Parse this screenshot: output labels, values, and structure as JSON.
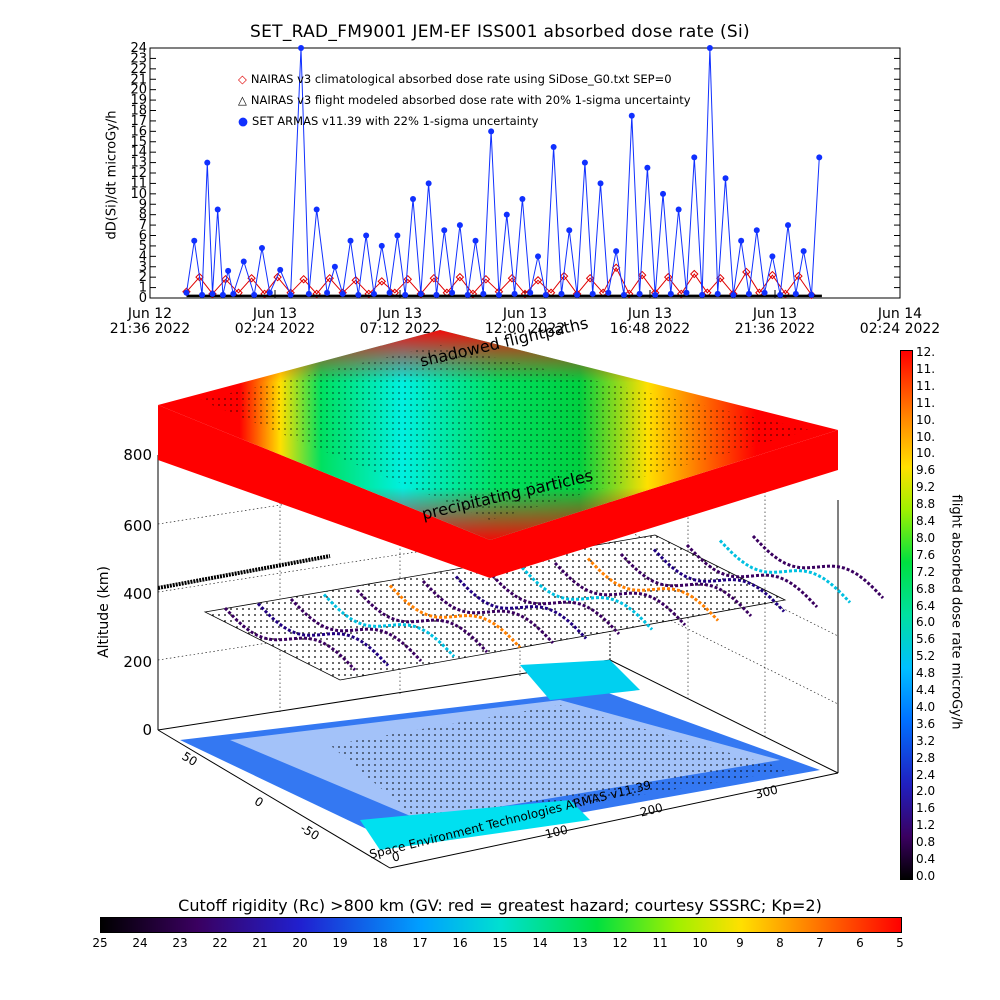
{
  "title": "SET_RAD_FM9001  JEM-EF ISS001 absorbed dose rate (Si)",
  "y_axis_label": "dD(Si)/dt microGy/h",
  "time_axis_ticks": [
    {
      "line1": "Jun 12",
      "line2": "21:36 2022"
    },
    {
      "line1": "Jun 13",
      "line2": "02:24 2022"
    },
    {
      "line1": "Jun 13",
      "line2": "07:12 2022"
    },
    {
      "line1": "Jun 13",
      "line2": "12:00 2022"
    },
    {
      "line1": "Jun 13",
      "line2": "16:48 2022"
    },
    {
      "line1": "Jun 13",
      "line2": "21:36 2022"
    },
    {
      "line1": "Jun 14",
      "line2": "02:24 2022"
    }
  ],
  "legend": [
    {
      "marker": "◇",
      "color": "#e00000",
      "label": "NAIRAS v3 climatological absorbed dose rate using SiDose_G0.txt SEP=0"
    },
    {
      "marker": "△",
      "color": "#000000",
      "label": "NAIRAS v3 flight modeled absorbed dose rate with 20% 1-sigma uncertainty"
    },
    {
      "marker": "●",
      "color": "#1030ff",
      "label": "SET ARMAS v11.39 with 22% 1-sigma uncertainty"
    }
  ],
  "annotations": {
    "shadowed": "shadowed flightpaths",
    "precipitating": "precipitating particles"
  },
  "altitude_label": "Altitude (km)",
  "altitude_ticks": [
    "0",
    "200",
    "400",
    "600",
    "800"
  ],
  "lat_ticks": [
    "-50",
    "0",
    "50"
  ],
  "lon_ticks": [
    "0",
    "100",
    "200",
    "300"
  ],
  "credit": "Space Environment Technologies ARMAS v11.39",
  "colorbar_label": "flight absorbed dose rate microGy/h",
  "colorbar_ticks": [
    "12.",
    "11.",
    "11.",
    "11.",
    "10.",
    "10.",
    "10.",
    "9.6",
    "9.2",
    "8.8",
    "8.4",
    "8.0",
    "7.6",
    "7.2",
    "6.8",
    "6.4",
    "6.0",
    "5.6",
    "5.2",
    "4.8",
    "4.4",
    "4.0",
    "3.6",
    "3.2",
    "2.8",
    "2.4",
    "2.0",
    "1.6",
    "1.2",
    "0.8",
    "0.4",
    "0.0"
  ],
  "rc_title": "Cutoff rigidity (Rc) >800 km (GV: red = greatest hazard; courtesy SSSRC; Kp=2)",
  "rc_ticks": [
    "25",
    "24",
    "23",
    "22",
    "21",
    "20",
    "19",
    "18",
    "17",
    "16",
    "15",
    "14",
    "13",
    "12",
    "11",
    "10",
    "9",
    "8",
    "7",
    "6",
    "5"
  ],
  "chart_data": {
    "type": "line",
    "title": "SET_RAD_FM9001  JEM-EF ISS001 absorbed dose rate (Si)",
    "xlabel": "",
    "ylabel": "dD(Si)/dt microGy/h",
    "ylim": [
      0,
      24
    ],
    "y_ticks": [
      0,
      1,
      2,
      3,
      4,
      5,
      6,
      7,
      8,
      9,
      10,
      11,
      12,
      13,
      14,
      15,
      16,
      17,
      18,
      19,
      20,
      21,
      22,
      23,
      24
    ],
    "x_hours": [
      0,
      4.8,
      9.6,
      14.4,
      19.2,
      24,
      28.8
    ],
    "xlim_hours": [
      0,
      28.8
    ],
    "series": [
      {
        "name": "NAIRAS v3 climatological absorbed dose rate using SiDose_G0.txt SEP=0",
        "color": "#e00000",
        "x": [
          1.4,
          1.9,
          2.4,
          2.9,
          3.4,
          3.9,
          4.4,
          4.9,
          5.4,
          5.9,
          6.4,
          6.9,
          7.4,
          7.9,
          8.4,
          8.9,
          9.4,
          9.9,
          10.4,
          10.9,
          11.4,
          11.9,
          12.4,
          12.9,
          13.4,
          13.9,
          14.4,
          14.9,
          15.4,
          15.9,
          16.4,
          16.9,
          17.4,
          17.9,
          18.4,
          18.9,
          19.4,
          19.9,
          20.4,
          20.9,
          21.4,
          21.9,
          22.4,
          22.9,
          23.4,
          23.9,
          24.4,
          24.9,
          25.4
        ],
        "y": [
          0.6,
          2.0,
          0.4,
          1.8,
          0.5,
          1.9,
          0.4,
          2.0,
          0.5,
          1.8,
          0.4,
          1.9,
          0.5,
          1.7,
          0.4,
          1.6,
          0.5,
          1.8,
          0.4,
          1.9,
          0.5,
          2.0,
          0.4,
          1.8,
          0.6,
          1.9,
          0.4,
          1.7,
          0.5,
          2.1,
          0.4,
          1.9,
          0.5,
          2.9,
          0.4,
          2.2,
          0.5,
          2.0,
          0.4,
          2.3,
          0.5,
          1.9,
          0.4,
          2.5,
          0.5,
          2.2,
          0.4,
          2.1,
          0.3
        ]
      },
      {
        "name": "NAIRAS v3 flight modeled absorbed dose rate with 20% 1-sigma uncertainty",
        "color": "#000000",
        "x": [
          1.4,
          5,
          10,
          15,
          20,
          25,
          25.8
        ],
        "y": [
          0.2,
          0.2,
          0.2,
          0.2,
          0.2,
          0.2,
          0.2
        ]
      },
      {
        "name": "SET ARMAS v11.39 with 22% 1-sigma uncertainty",
        "color": "#1030ff",
        "x": [
          1.4,
          1.7,
          2.0,
          2.2,
          2.4,
          2.6,
          2.8,
          3.0,
          3.2,
          3.6,
          4.0,
          4.3,
          4.6,
          5.0,
          5.4,
          5.8,
          6.1,
          6.4,
          6.8,
          7.1,
          7.4,
          7.7,
          8.0,
          8.3,
          8.6,
          8.9,
          9.2,
          9.5,
          9.8,
          10.1,
          10.4,
          10.7,
          11.0,
          11.3,
          11.6,
          11.9,
          12.2,
          12.5,
          12.8,
          13.1,
          13.4,
          13.7,
          14.0,
          14.3,
          14.6,
          14.9,
          15.2,
          15.5,
          15.8,
          16.1,
          16.4,
          16.7,
          17.0,
          17.3,
          17.6,
          17.9,
          18.2,
          18.5,
          18.8,
          19.1,
          19.4,
          19.7,
          20.0,
          20.3,
          20.6,
          20.9,
          21.2,
          21.5,
          21.8,
          22.1,
          22.4,
          22.7,
          23.0,
          23.3,
          23.6,
          23.9,
          24.2,
          24.5,
          24.8,
          25.1,
          25.4,
          25.7
        ],
        "y": [
          0.5,
          5.5,
          0.3,
          13,
          0.4,
          8.5,
          0.3,
          2.6,
          0.4,
          3.5,
          0.3,
          4.8,
          0.5,
          2.7,
          0.3,
          24,
          0.4,
          8.5,
          0.5,
          3.0,
          0.4,
          5.5,
          0.3,
          6.0,
          0.4,
          5.0,
          0.5,
          6.0,
          0.3,
          9.5,
          0.4,
          11,
          0.3,
          6.5,
          0.5,
          7.0,
          0.3,
          5.5,
          0.4,
          16,
          0.3,
          8.0,
          0.4,
          9.5,
          0.5,
          4.0,
          0.3,
          14.5,
          0.4,
          6.5,
          0.3,
          13,
          0.4,
          11,
          0.5,
          4.5,
          0.3,
          17.5,
          0.4,
          12.5,
          0.3,
          10,
          0.4,
          8.5,
          0.5,
          13.5,
          0.3,
          24,
          0.4,
          11.5,
          0.3,
          5.5,
          0.4,
          6.5,
          0.5,
          4.0,
          0.3,
          7.0,
          0.4,
          4.5,
          0.3,
          13.5
        ]
      }
    ]
  }
}
